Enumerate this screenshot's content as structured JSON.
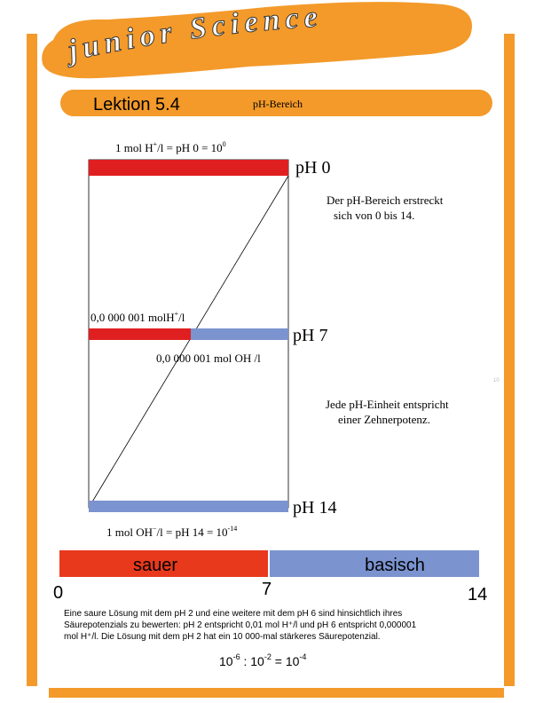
{
  "header": {
    "logo": "junior Science",
    "lesson": "Lektion 5.4",
    "topic": "pH-Bereich"
  },
  "diagram": {
    "top_label": [
      "1 mol H",
      "+",
      "/l = pH 0 = 10",
      "0"
    ],
    "ph_labels": [
      "pH 0",
      "pH 7",
      "pH 14"
    ],
    "mid_label_acid": [
      "0,0 000 001 molH",
      "+",
      "/l"
    ],
    "mid_label_base": "0,0 000 001 mol OH /l",
    "bottom_label": [
      "1 mol OH",
      "−",
      "/l = pH 14 = 10",
      "-14"
    ],
    "notes": [
      "Der pH-Bereich erstreckt",
      "sich von 0 bis 14.",
      "Jede pH-Einheit entspricht",
      "einer Zehnerpotenz."
    ]
  },
  "scale": {
    "acid": "sauer",
    "base": "basisch",
    "ticks": [
      "0",
      "7",
      "14"
    ]
  },
  "text": {
    "lines": [
      "Eine saure Lösung mit dem pH 2 und eine weitere mit dem pH 6 sind hinsichtlich ihres",
      "Säurepotenzials zu bewerten: pH 2 entspricht 0,01 mol H⁺/l und pH 6 entspricht 0,000001",
      "mol H⁺/l. Die Lösung mit dem pH 2 hat ein 10 000-mal stärkeres Säurepotenzial."
    ],
    "formula": [
      "10",
      "-6",
      " : 10",
      "-2",
      " = 10",
      "-4"
    ]
  },
  "page_number": "10"
}
